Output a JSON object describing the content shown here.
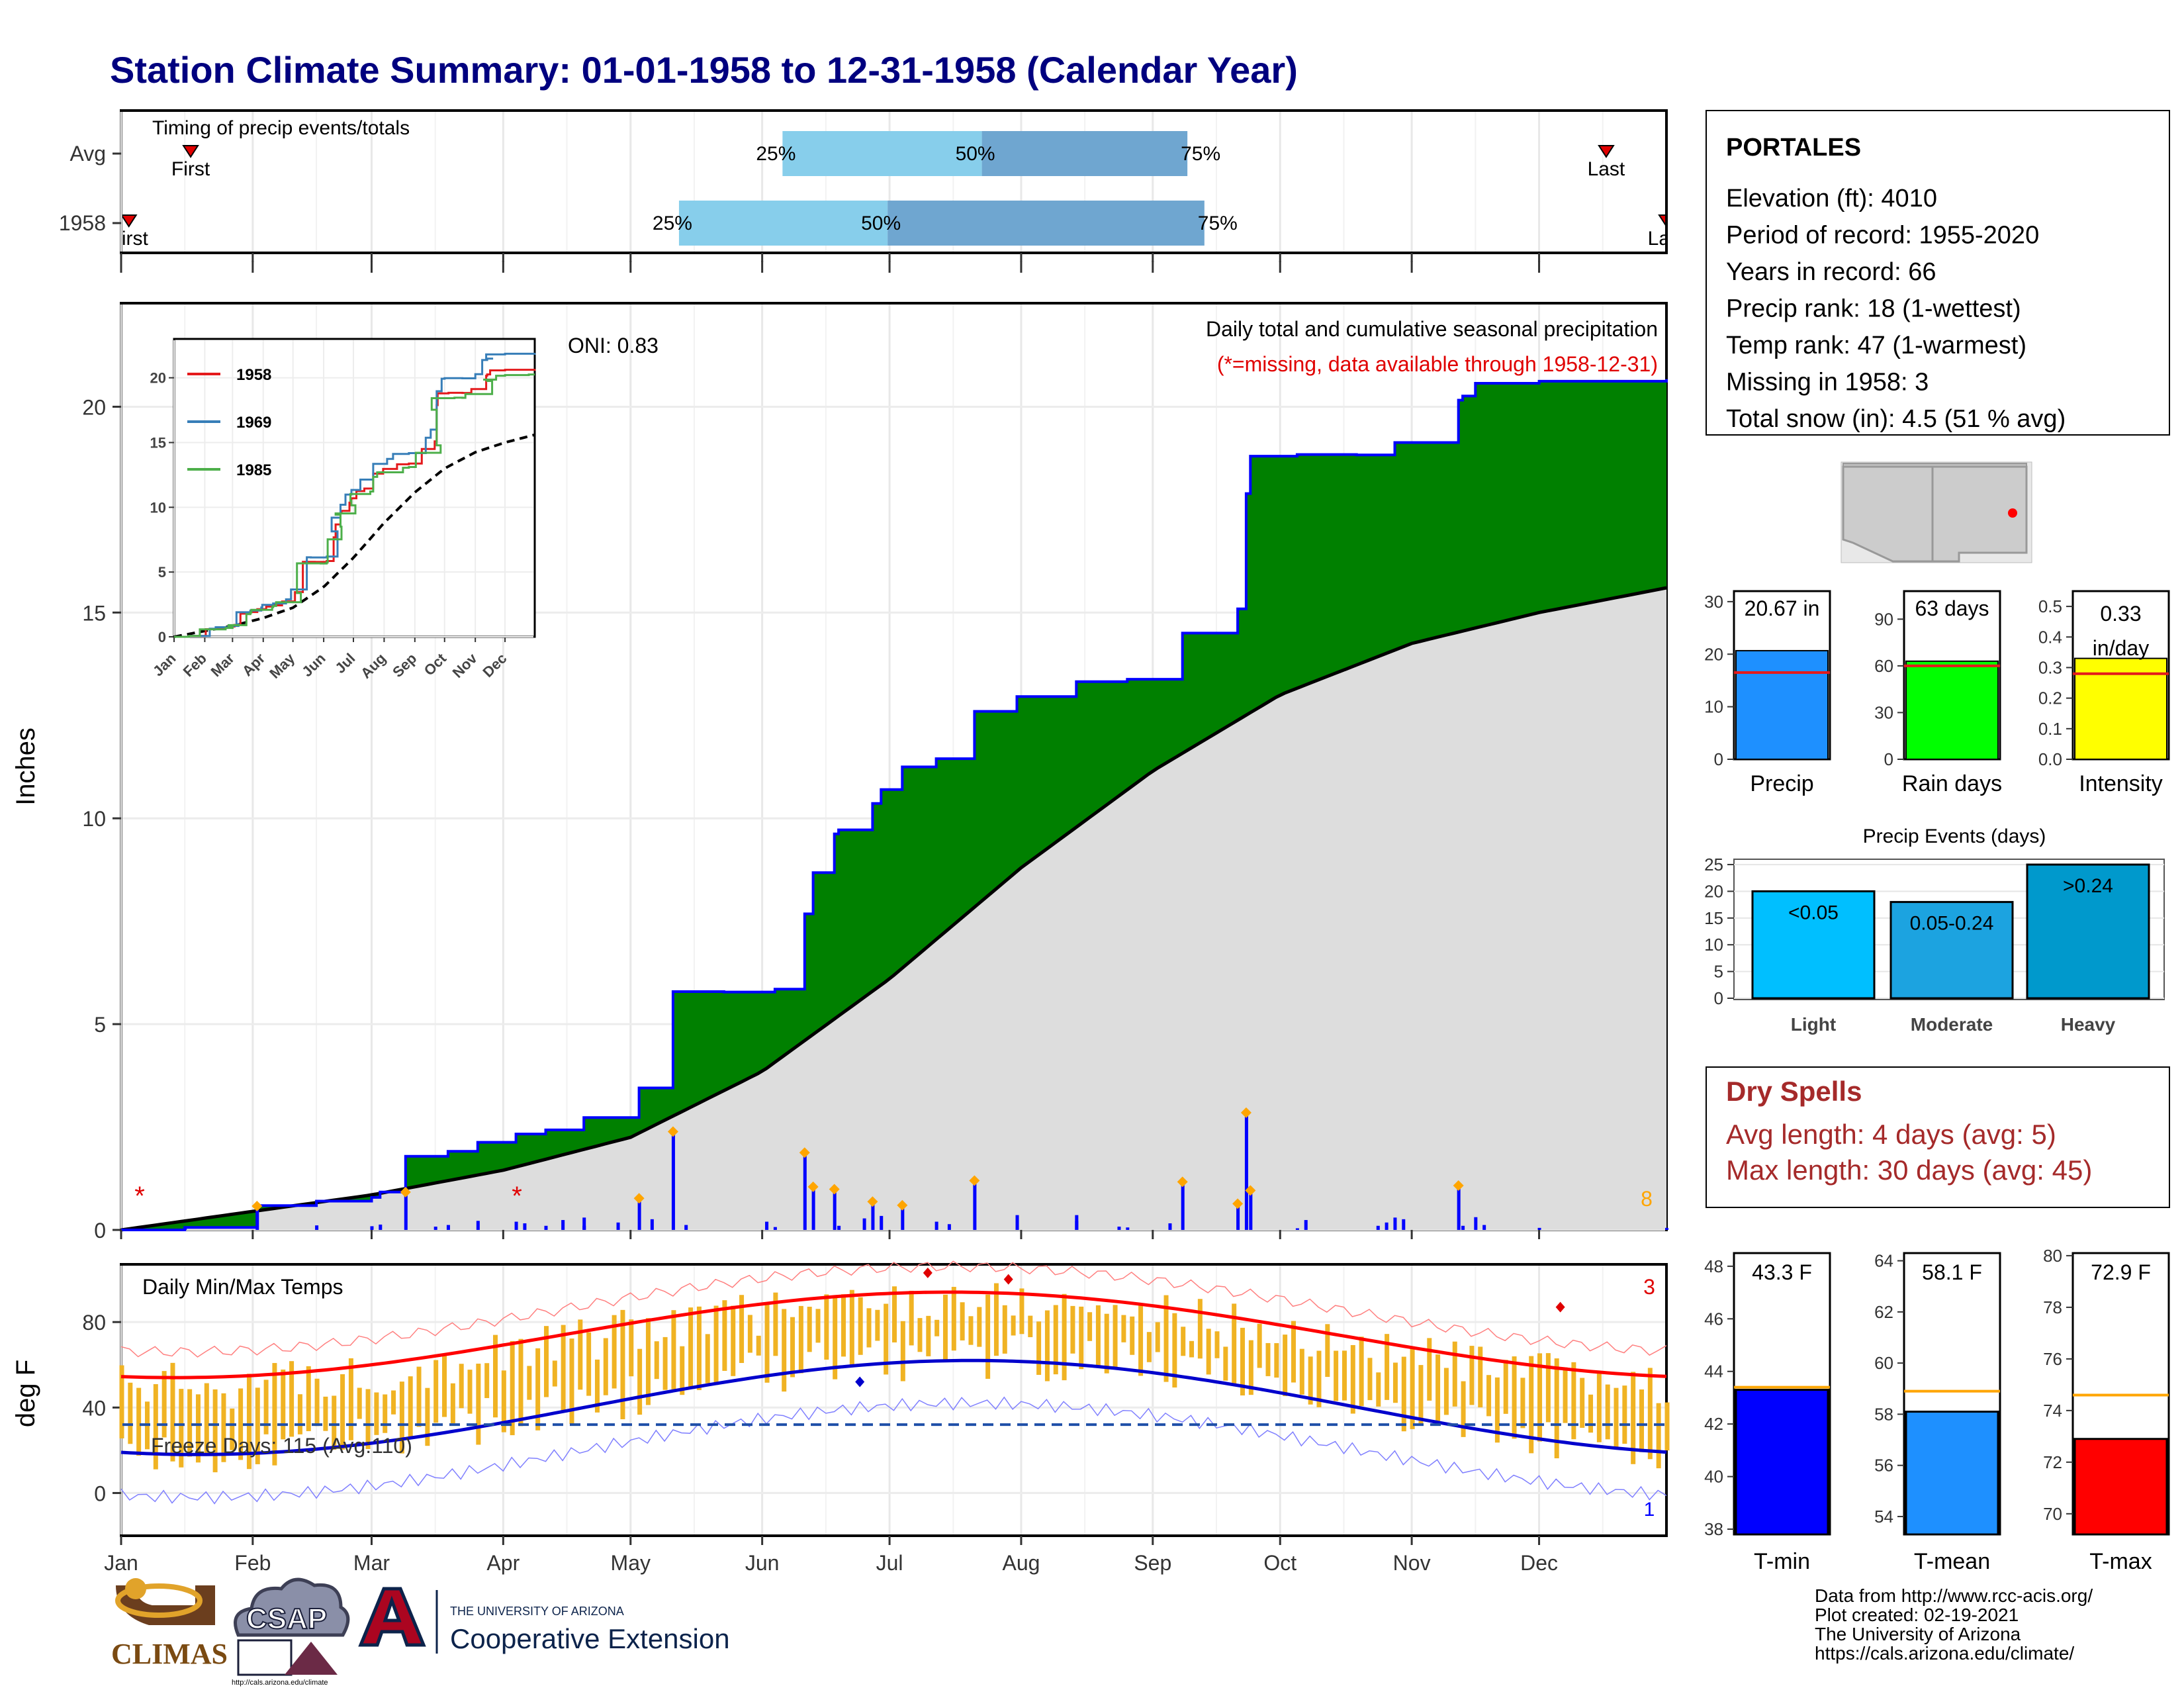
{
  "title": "Station Climate Summary: 01-01-1958 to 12-31-1958 (Calendar Year)",
  "colors": {
    "title": "#00007f",
    "green_fill": "#008000",
    "blue_line": "#0000ff",
    "normal_fill": "#dddddd",
    "bar_light": "#87ceeb",
    "bar_dark": "#6fa6d0",
    "temp_bar": "#f0b323",
    "dry_spells": "#a52a2a",
    "onset_marker": "#ff0000",
    "event_diamond": "#ffa500"
  },
  "timing": {
    "title": "Timing of precip events/totals",
    "rows": [
      {
        "label": "Avg",
        "first_label": "First",
        "last_label": "Last",
        "p25": 0.428,
        "p50": 0.557,
        "p75": 0.69,
        "first_date": 0.045,
        "last_date": 0.961
      },
      {
        "label": "1958",
        "first_label": "First",
        "last_label": "Last",
        "p25": 0.361,
        "p50": 0.496,
        "p75": 0.701,
        "first_date": 0.005,
        "last_date": 1.0
      }
    ],
    "pct_labels": [
      "25%",
      "50%",
      "75%"
    ]
  },
  "precip_panel": {
    "ylabel": "Inches",
    "yticks": [
      "0",
      "5",
      "10",
      "15",
      "20"
    ],
    "ylim": [
      0,
      22.5
    ],
    "oni": "ONI: 0.83",
    "subtitle": "Daily total and cumulative seasonal precipitation",
    "missing_note": "(*=missing, data available through 1958-12-31)",
    "missing_count": "8"
  },
  "months": [
    "Jan",
    "Feb",
    "Mar",
    "Apr",
    "May",
    "Jun",
    "Jul",
    "Aug",
    "Sep",
    "Oct",
    "Nov",
    "Dec"
  ],
  "inset": {
    "yticks": [
      "0",
      "5",
      "10",
      "15",
      "20"
    ],
    "legend": [
      "1958",
      "1969",
      "1985"
    ],
    "legend_colors": [
      "#e41a1c",
      "#377eb8",
      "#4daf4a"
    ]
  },
  "temp_panel": {
    "title": "Daily Min/Max Temps",
    "ylabel": "deg F",
    "yticks": [
      "0",
      "40",
      "80"
    ],
    "ylim": [
      -20,
      107
    ],
    "freeze": "Freeze Days: 115 (Avg:110)",
    "missing_top": "3",
    "missing_bottom": "1"
  },
  "station": {
    "name": "PORTALES",
    "lines": [
      "Elevation (ft): 4010",
      "Period of record: 1955-2020",
      "Years in record: 66",
      "Precip rank: 18 (1-wettest)",
      "Temp rank: 47 (1-warmest)",
      "Missing in 1958: 3",
      "Total snow (in): 4.5 (51 % avg)"
    ]
  },
  "mini_bars": [
    {
      "label": "Precip",
      "value_text": "20.67 in",
      "value": 20.67,
      "avg": 16.5,
      "ymax": 32,
      "yticks": [
        "0",
        "10",
        "20",
        "30"
      ],
      "color": "#1e90ff"
    },
    {
      "label": "Rain days",
      "value_text": "63 days",
      "value": 63,
      "avg": 60,
      "ymax": 108,
      "yticks": [
        "0",
        "30",
        "60",
        "90"
      ],
      "color": "#00ff00"
    },
    {
      "label": "Intensity",
      "value_text": "0.33 in/day",
      "value": 0.33,
      "avg": 0.28,
      "ymax": 0.55,
      "yticks": [
        "0.0",
        "0.1",
        "0.2",
        "0.3",
        "0.4",
        "0.5"
      ],
      "color": "#ffff00"
    }
  ],
  "precip_events": {
    "title": "Precip Events (days)",
    "yticks": [
      "0",
      "5",
      "10",
      "15",
      "20",
      "25"
    ],
    "ymax": 26,
    "bars": [
      {
        "label": "Light",
        "inner": "<0.05",
        "value": 20,
        "color": "#00bfff"
      },
      {
        "label": "Moderate",
        "inner": "0.05-0.24",
        "value": 18,
        "color": "#1ca3e0"
      },
      {
        "label": "Heavy",
        "inner": ">0.24",
        "value": 25,
        "color": "#0099cc"
      }
    ]
  },
  "dry_spells": {
    "title": "Dry Spells",
    "avg_line": "Avg length: 4 days (avg: 5)",
    "max_line": "Max length: 30 days (avg: 45)"
  },
  "temp_bars": [
    {
      "label": "T-min",
      "value_text": "43.3 F",
      "value": 43.3,
      "avg": 43.4,
      "ymin": 37.8,
      "ymax": 48.5,
      "yticks": [
        "38",
        "40",
        "42",
        "44",
        "46",
        "48"
      ],
      "color": "#0000ff"
    },
    {
      "label": "T-mean",
      "value_text": "58.1 F",
      "value": 58.1,
      "avg": 58.9,
      "ymin": 53.3,
      "ymax": 64.3,
      "yticks": [
        "54",
        "56",
        "58",
        "60",
        "62",
        "64"
      ],
      "color": "#1e90ff"
    },
    {
      "label": "T-max",
      "value_text": "72.9 F",
      "value": 72.9,
      "avg": 74.6,
      "ymin": 69.2,
      "ymax": 80.1,
      "yticks": [
        "70",
        "72",
        "74",
        "76",
        "78",
        "80"
      ],
      "color": "#ff0000"
    }
  ],
  "footer": {
    "lines": [
      "Data from http://www.rcc-acis.org/",
      "Plot created: 02-19-2021",
      "The University of Arizona",
      "https://cals.arizona.edu/climate/"
    ]
  },
  "logos": {
    "climas": "CLIMAS",
    "csap": "CSAP",
    "csap_url": "http://cals.arizona.edu/climate",
    "ua_small": "THE UNIVERSITY OF ARIZONA",
    "ua_big": "Cooperative Extension"
  },
  "chart_data": {
    "type": "area",
    "series": [
      {
        "name": "1958",
        "x": [
          1,
          16,
          33,
          47,
          60,
          62,
          68,
          78,
          85,
          94,
          101,
          110,
          123,
          130,
          131,
          143,
          155,
          162,
          164,
          169,
          170,
          178,
          180,
          185,
          193,
          202,
          212,
          226,
          238,
          251,
          264,
          266,
          267,
          278,
          292,
          301,
          316,
          317,
          319,
          320,
          335,
          365
        ],
        "values": [
          0.0,
          0.06,
          0.59,
          0.7,
          0.79,
          0.92,
          1.79,
          1.91,
          2.13,
          2.33,
          2.43,
          2.73,
          3.45,
          3.45,
          5.79,
          5.78,
          5.85,
          7.68,
          8.68,
          9.62,
          9.72,
          10.36,
          10.7,
          11.25,
          11.45,
          12.6,
          12.96,
          13.32,
          13.38,
          14.5,
          15.09,
          17.89,
          18.8,
          18.84,
          18.83,
          19.13,
          20.16,
          20.26,
          20.26,
          20.57,
          20.62,
          20.67
        ]
      },
      {
        "name": "Average",
        "x": [
          1,
          32,
          60,
          91,
          121,
          152,
          182,
          213,
          244,
          274,
          305,
          335,
          365
        ],
        "values": [
          0.0,
          0.45,
          0.85,
          1.45,
          2.25,
          3.85,
          6.1,
          8.8,
          11.15,
          13.0,
          14.25,
          15.0,
          15.6
        ]
      }
    ],
    "xlabel": "",
    "ylabel": "Inches",
    "ylim": [
      0,
      22.5
    ],
    "xlim": [
      1,
      365
    ]
  }
}
